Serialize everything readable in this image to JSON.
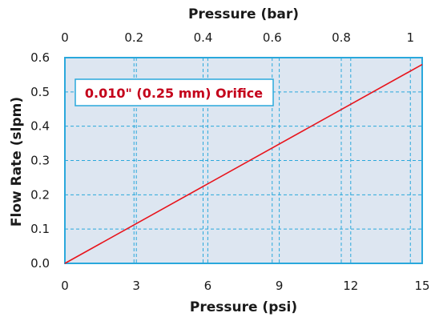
{
  "chart_data": {
    "type": "line",
    "title": "",
    "xlabel": "Pressure (psi)",
    "ylabel": "Flow Rate (slpm)",
    "top_xlabel": "Pressure (bar)",
    "xlim": [
      0,
      15
    ],
    "ylim": [
      0,
      0.6
    ],
    "top_xlim_bar": [
      0,
      1.0342
    ],
    "x_ticks": [
      0,
      3,
      6,
      9,
      12,
      15
    ],
    "x_tick_labels": [
      "0",
      "3",
      "6",
      "9",
      "12",
      "15"
    ],
    "y_ticks": [
      0.0,
      0.1,
      0.2,
      0.3,
      0.4,
      0.5,
      0.6
    ],
    "y_tick_labels": [
      "0.0",
      "0.1",
      "0.2",
      "0.3",
      "0.4",
      "0.5",
      "0.6"
    ],
    "top_ticks_bar": [
      0,
      0.2,
      0.4,
      0.6,
      0.8,
      1
    ],
    "top_tick_labels": [
      "0",
      "0.2",
      "0.4",
      "0.6",
      "0.8",
      "1"
    ],
    "grid": true,
    "annotation": "0.010\" (0.25 mm) Orifice",
    "series": [
      {
        "x": [
          0,
          15
        ],
        "y": [
          0,
          0.58
        ]
      }
    ],
    "colors": {
      "line": "#e8141c",
      "plot_bg": "#dde6f1",
      "grid": "#2aa8dc",
      "frame": "#2aa8dc",
      "annotation_text": "#c4001a"
    }
  }
}
